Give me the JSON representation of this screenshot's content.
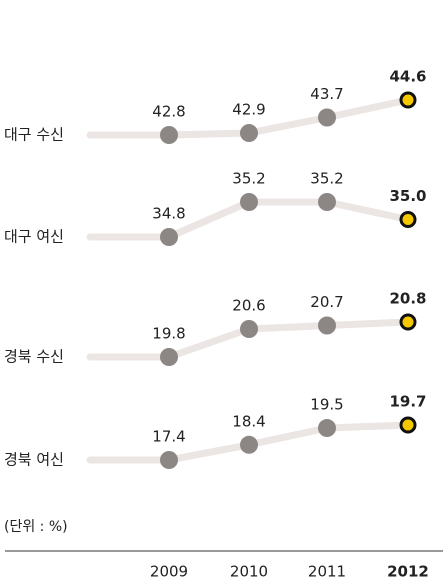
{
  "chart_data": {
    "type": "line",
    "categories": [
      "2009",
      "2010",
      "2011",
      "2012"
    ],
    "unit_note": "(단위 : %)",
    "line_color": "#ebe5e3",
    "point_color": "#8c8685",
    "highlight_color": "#f5c800",
    "series": [
      {
        "name": "대구 수신",
        "values": [
          42.8,
          42.9,
          43.7,
          44.6
        ],
        "value_labels": [
          "42.8",
          "42.9",
          "43.7",
          "44.6"
        ]
      },
      {
        "name": "대구 여신",
        "values": [
          34.8,
          35.2,
          35.2,
          35.0
        ],
        "value_labels": [
          "34.8",
          "35.2",
          "35.2",
          "35.0"
        ]
      },
      {
        "name": "경북 수신",
        "values": [
          19.8,
          20.6,
          20.7,
          20.8
        ],
        "value_labels": [
          "19.8",
          "20.6",
          "20.7",
          "20.8"
        ]
      },
      {
        "name": "경북 여신",
        "values": [
          17.4,
          18.4,
          19.5,
          19.7
        ],
        "value_labels": [
          "17.4",
          "18.4",
          "19.5",
          "19.7"
        ]
      }
    ]
  }
}
